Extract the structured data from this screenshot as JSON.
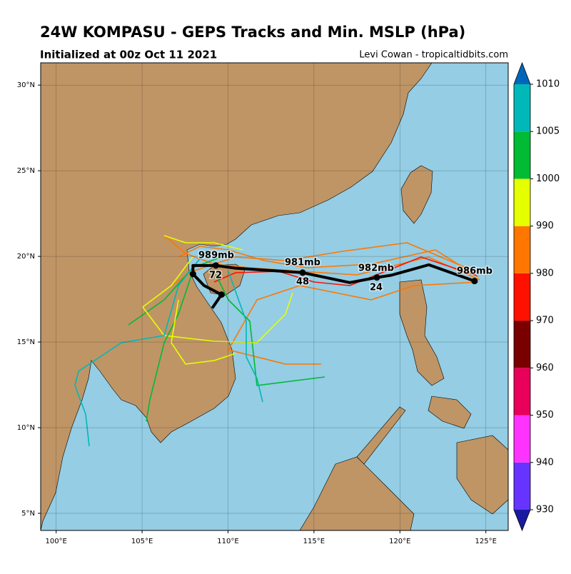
{
  "title": "24W KOMPASU - GEPS Tracks and Min. MSLP (hPa)",
  "subtitle": "Initialized at 00z Oct 11 2021",
  "credit": "Levi Cowan - tropicaltidbits.com",
  "map": {
    "xlim": [
      99.1,
      126.3
    ],
    "ylim": [
      4.0,
      31.3
    ],
    "xticks": [
      {
        "value": 100,
        "label": "100°E"
      },
      {
        "value": 105,
        "label": "105°E"
      },
      {
        "value": 110,
        "label": "110°E"
      },
      {
        "value": 115,
        "label": "115°E"
      },
      {
        "value": 120,
        "label": "120°E"
      },
      {
        "value": 125,
        "label": "125°E"
      }
    ],
    "yticks": [
      {
        "value": 5,
        "label": "5°N"
      },
      {
        "value": 10,
        "label": "10°N"
      },
      {
        "value": 15,
        "label": "15°N"
      },
      {
        "value": 20,
        "label": "20°N"
      },
      {
        "value": 25,
        "label": "25°N"
      },
      {
        "value": 30,
        "label": "30°N"
      }
    ]
  },
  "track": {
    "color": "#000000",
    "lon": [
      124.34,
      121.68,
      119.5,
      118.66,
      117.08,
      114.34,
      110.45,
      109.29,
      107.96,
      107.96,
      108.6,
      109.62,
      109.08
    ],
    "lat": [
      18.56,
      19.51,
      18.9,
      18.77,
      18.47,
      19.05,
      19.31,
      19.47,
      19.47,
      18.97,
      18.3,
      17.77,
      16.98
    ],
    "labels": [
      "986mb",
      "982mb",
      "24",
      "981mb",
      "48",
      "989mb",
      "72"
    ]
  },
  "colorbar": {
    "ticks": [
      930,
      940,
      950,
      960,
      970,
      980,
      990,
      1000,
      1005,
      1010
    ],
    "colors": [
      "#6633ff",
      "#ff33ff",
      "#e8005a",
      "#7a0000",
      "#ff1100",
      "#ff7700",
      "#e6ff00",
      "#00bb33",
      "#00b8b8"
    ],
    "under": "#1a1aa0",
    "over": "#0066bb"
  }
}
